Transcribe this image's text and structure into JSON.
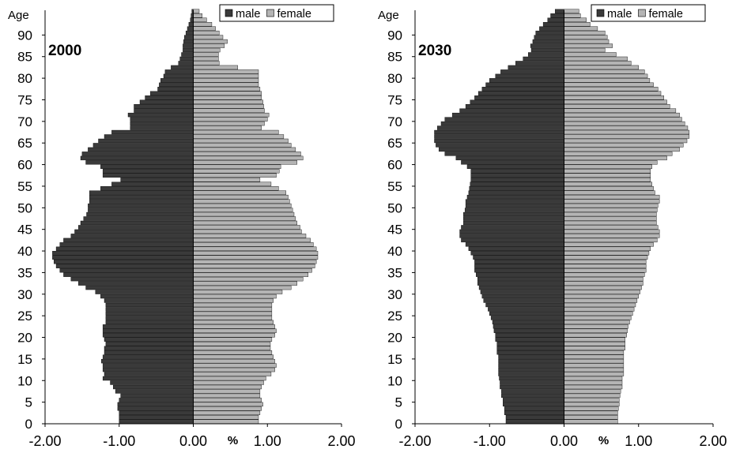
{
  "chart_data": [
    {
      "type": "bar",
      "orientation": "horizontal",
      "title": "2000",
      "ylabel": "Age",
      "xlabel": "%",
      "xlim": [
        -2.0,
        2.0
      ],
      "x_ticks": [
        "-2.00",
        "-1.00",
        "0.00",
        "1.00",
        "2.00"
      ],
      "ylim": [
        0,
        95
      ],
      "y_ticks": [
        "0",
        "5",
        "10",
        "15",
        "20",
        "25",
        "30",
        "35",
        "40",
        "45",
        "50",
        "55",
        "60",
        "65",
        "70",
        "75",
        "80",
        "85",
        "90"
      ],
      "legend_position": "top-right",
      "series": [
        {
          "name": "male",
          "color": "#3a3a3a",
          "values": [
            -1.0,
            -1.0,
            -1.0,
            -1.02,
            -1.02,
            -1.0,
            -0.98,
            -1.05,
            -1.08,
            -1.12,
            -1.22,
            -1.2,
            -1.22,
            -1.22,
            -1.24,
            -1.22,
            -1.2,
            -1.2,
            -1.18,
            -1.2,
            -1.22,
            -1.22,
            -1.22,
            -1.18,
            -1.18,
            -1.18,
            -1.18,
            -1.18,
            -1.2,
            -1.25,
            -1.32,
            -1.45,
            -1.55,
            -1.65,
            -1.75,
            -1.8,
            -1.85,
            -1.88,
            -1.9,
            -1.9,
            -1.85,
            -1.8,
            -1.75,
            -1.65,
            -1.6,
            -1.55,
            -1.52,
            -1.48,
            -1.44,
            -1.42,
            -1.42,
            -1.4,
            -1.4,
            -1.4,
            -1.25,
            -1.1,
            -0.98,
            -1.22,
            -1.22,
            -1.25,
            -1.45,
            -1.52,
            -1.5,
            -1.42,
            -1.35,
            -1.28,
            -1.2,
            -1.1,
            -0.85,
            -0.85,
            -0.85,
            -0.88,
            -0.8,
            -0.8,
            -0.72,
            -0.65,
            -0.58,
            -0.48,
            -0.46,
            -0.44,
            -0.4,
            -0.38,
            -0.3,
            -0.2,
            -0.18,
            -0.16,
            -0.14,
            -0.14,
            -0.13,
            -0.12,
            -0.1,
            -0.08,
            -0.06,
            -0.04,
            -0.03,
            -0.02
          ]
        },
        {
          "name": "female",
          "color": "#b4b4b4",
          "values": [
            0.88,
            0.88,
            0.9,
            0.92,
            0.94,
            0.92,
            0.9,
            0.9,
            0.92,
            0.95,
            0.98,
            1.05,
            1.1,
            1.12,
            1.1,
            1.08,
            1.06,
            1.04,
            1.04,
            1.06,
            1.1,
            1.12,
            1.1,
            1.08,
            1.06,
            1.06,
            1.06,
            1.06,
            1.08,
            1.12,
            1.2,
            1.32,
            1.4,
            1.48,
            1.55,
            1.6,
            1.64,
            1.66,
            1.68,
            1.68,
            1.66,
            1.62,
            1.58,
            1.52,
            1.46,
            1.44,
            1.4,
            1.38,
            1.36,
            1.34,
            1.32,
            1.3,
            1.28,
            1.25,
            1.15,
            1.05,
            0.9,
            1.12,
            1.16,
            1.18,
            1.4,
            1.48,
            1.45,
            1.38,
            1.32,
            1.28,
            1.22,
            1.15,
            0.92,
            0.96,
            1.0,
            1.02,
            0.96,
            0.95,
            0.94,
            0.92,
            0.92,
            0.9,
            0.88,
            0.88,
            0.88,
            0.88,
            0.6,
            0.35,
            0.34,
            0.34,
            0.36,
            0.42,
            0.46,
            0.4,
            0.35,
            0.3,
            0.25,
            0.18,
            0.12,
            0.08
          ]
        }
      ]
    },
    {
      "type": "bar",
      "orientation": "horizontal",
      "title": "2030",
      "ylabel": "Age",
      "xlabel": "%",
      "xlim": [
        -2.0,
        2.0
      ],
      "x_ticks": [
        "-2.00",
        "-1.00",
        "0.00",
        "1.00",
        "2.00"
      ],
      "ylim": [
        0,
        95
      ],
      "y_ticks": [
        "0",
        "5",
        "10",
        "15",
        "20",
        "25",
        "30",
        "35",
        "40",
        "45",
        "50",
        "55",
        "60",
        "65",
        "70",
        "75",
        "80",
        "85",
        "90"
      ],
      "legend_position": "top-right",
      "series": [
        {
          "name": "male",
          "color": "#3a3a3a",
          "values": [
            -0.78,
            -0.78,
            -0.8,
            -0.8,
            -0.82,
            -0.82,
            -0.84,
            -0.84,
            -0.86,
            -0.86,
            -0.87,
            -0.88,
            -0.88,
            -0.88,
            -0.88,
            -0.88,
            -0.9,
            -0.9,
            -0.9,
            -0.92,
            -0.92,
            -0.94,
            -0.95,
            -0.96,
            -0.98,
            -1.0,
            -1.02,
            -1.05,
            -1.08,
            -1.1,
            -1.12,
            -1.14,
            -1.16,
            -1.16,
            -1.18,
            -1.2,
            -1.2,
            -1.2,
            -1.22,
            -1.25,
            -1.28,
            -1.32,
            -1.38,
            -1.4,
            -1.4,
            -1.38,
            -1.35,
            -1.35,
            -1.35,
            -1.33,
            -1.32,
            -1.32,
            -1.3,
            -1.28,
            -1.27,
            -1.26,
            -1.25,
            -1.25,
            -1.25,
            -1.3,
            -1.38,
            -1.45,
            -1.6,
            -1.68,
            -1.72,
            -1.74,
            -1.74,
            -1.74,
            -1.7,
            -1.65,
            -1.6,
            -1.5,
            -1.4,
            -1.32,
            -1.26,
            -1.2,
            -1.15,
            -1.1,
            -1.05,
            -1.0,
            -0.92,
            -0.85,
            -0.75,
            -0.65,
            -0.55,
            -0.48,
            -0.44,
            -0.45,
            -0.42,
            -0.4,
            -0.38,
            -0.33,
            -0.28,
            -0.22,
            -0.18,
            -0.12
          ]
        },
        {
          "name": "female",
          "color": "#b4b4b4",
          "values": [
            0.72,
            0.72,
            0.72,
            0.73,
            0.74,
            0.74,
            0.75,
            0.76,
            0.78,
            0.78,
            0.78,
            0.8,
            0.8,
            0.8,
            0.8,
            0.8,
            0.8,
            0.82,
            0.82,
            0.82,
            0.84,
            0.85,
            0.86,
            0.88,
            0.9,
            0.92,
            0.94,
            0.96,
            0.98,
            1.0,
            1.02,
            1.04,
            1.06,
            1.06,
            1.08,
            1.1,
            1.1,
            1.1,
            1.12,
            1.14,
            1.16,
            1.2,
            1.25,
            1.28,
            1.28,
            1.26,
            1.24,
            1.24,
            1.24,
            1.25,
            1.26,
            1.28,
            1.28,
            1.22,
            1.2,
            1.18,
            1.16,
            1.16,
            1.16,
            1.18,
            1.25,
            1.38,
            1.45,
            1.55,
            1.6,
            1.65,
            1.68,
            1.68,
            1.66,
            1.62,
            1.58,
            1.55,
            1.5,
            1.42,
            1.38,
            1.34,
            1.3,
            1.26,
            1.2,
            1.15,
            1.12,
            1.08,
            1.0,
            0.9,
            0.85,
            0.7,
            0.55,
            0.65,
            0.6,
            0.58,
            0.55,
            0.45,
            0.35,
            0.3,
            0.22,
            0.2
          ]
        }
      ]
    }
  ]
}
